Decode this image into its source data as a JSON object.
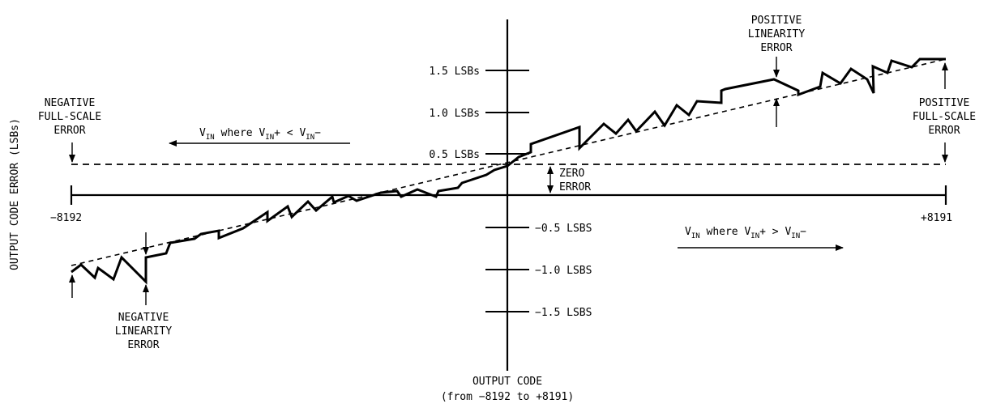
{
  "y_axis_title": "OUTPUT CODE ERROR (LSBs)",
  "x_axis_title": {
    "line1": "OUTPUT CODE",
    "line2": "(from −8192 to +8191)"
  },
  "x_endpoints": {
    "min": "−8192",
    "max": "+8191"
  },
  "y_ticks": {
    "p15": "1.5 LSBs",
    "p10": "1.0 LSBs",
    "p05": "0.5 LSBs",
    "m05": "−0.5 LSBS",
    "m10": "−1.0 LSBS",
    "m15": "−1.5 LSBS"
  },
  "annotations": {
    "negative_full_scale": [
      "NEGATIVE",
      "FULL-SCALE",
      "ERROR"
    ],
    "positive_full_scale": [
      "POSITIVE",
      "FULL-SCALE",
      "ERROR"
    ],
    "positive_linearity": [
      "POSITIVE",
      "LINEARITY",
      "ERROR"
    ],
    "negative_linearity": [
      "NEGATIVE",
      "LINEARITY",
      "ERROR"
    ],
    "zero_error": [
      "ZERO",
      "ERROR"
    ]
  },
  "vin_negative": {
    "v": "V",
    "in": "IN",
    "where": " where V",
    "in2": "IN",
    "rel": "+ < V",
    "in3": "IN",
    "tail": "−"
  },
  "vin_positive": {
    "v": "V",
    "in": "IN",
    "where": " where V",
    "in2": "IN",
    "rel": "+ > V",
    "in3": "IN",
    "tail": "−"
  },
  "colors": {
    "ink": "#000000",
    "background": "#ffffff"
  }
}
